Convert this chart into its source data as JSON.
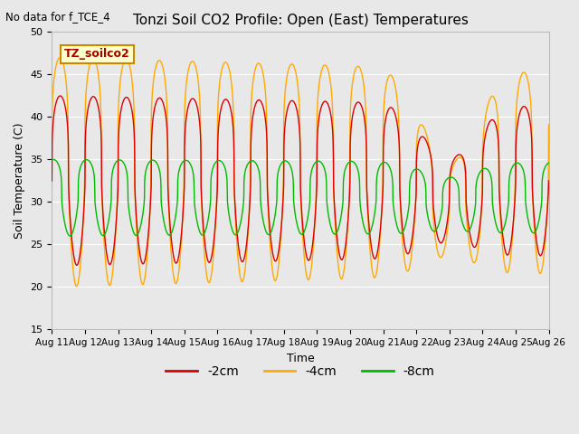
{
  "title": "Tonzi Soil CO2 Profile: Open (East) Temperatures",
  "subtitle": "No data for f_TCE_4",
  "xlabel": "Time",
  "ylabel": "Soil Temperature (C)",
  "ylim": [
    15,
    50
  ],
  "x_tick_labels": [
    "Aug 11",
    "Aug 12",
    "Aug 13",
    "Aug 14",
    "Aug 15",
    "Aug 16",
    "Aug 17",
    "Aug 18",
    "Aug 19",
    "Aug 20",
    "Aug 21",
    "Aug 22",
    "Aug 23",
    "Aug 24",
    "Aug 25",
    "Aug 26"
  ],
  "line_neg2cm_color": "#dd0000",
  "line_neg4cm_color": "#ffaa00",
  "line_neg8cm_color": "#00bb00",
  "legend_label_neg2": "-2cm",
  "legend_label_neg4": "-4cm",
  "legend_label_neg8": "-8cm",
  "legend_box_label": "TZ_soilco2",
  "background_color": "#e8e8e8",
  "plot_bg_color": "#e8e8e8",
  "grid_color": "#ffffff",
  "n_days": 15,
  "pts_per_day": 288
}
